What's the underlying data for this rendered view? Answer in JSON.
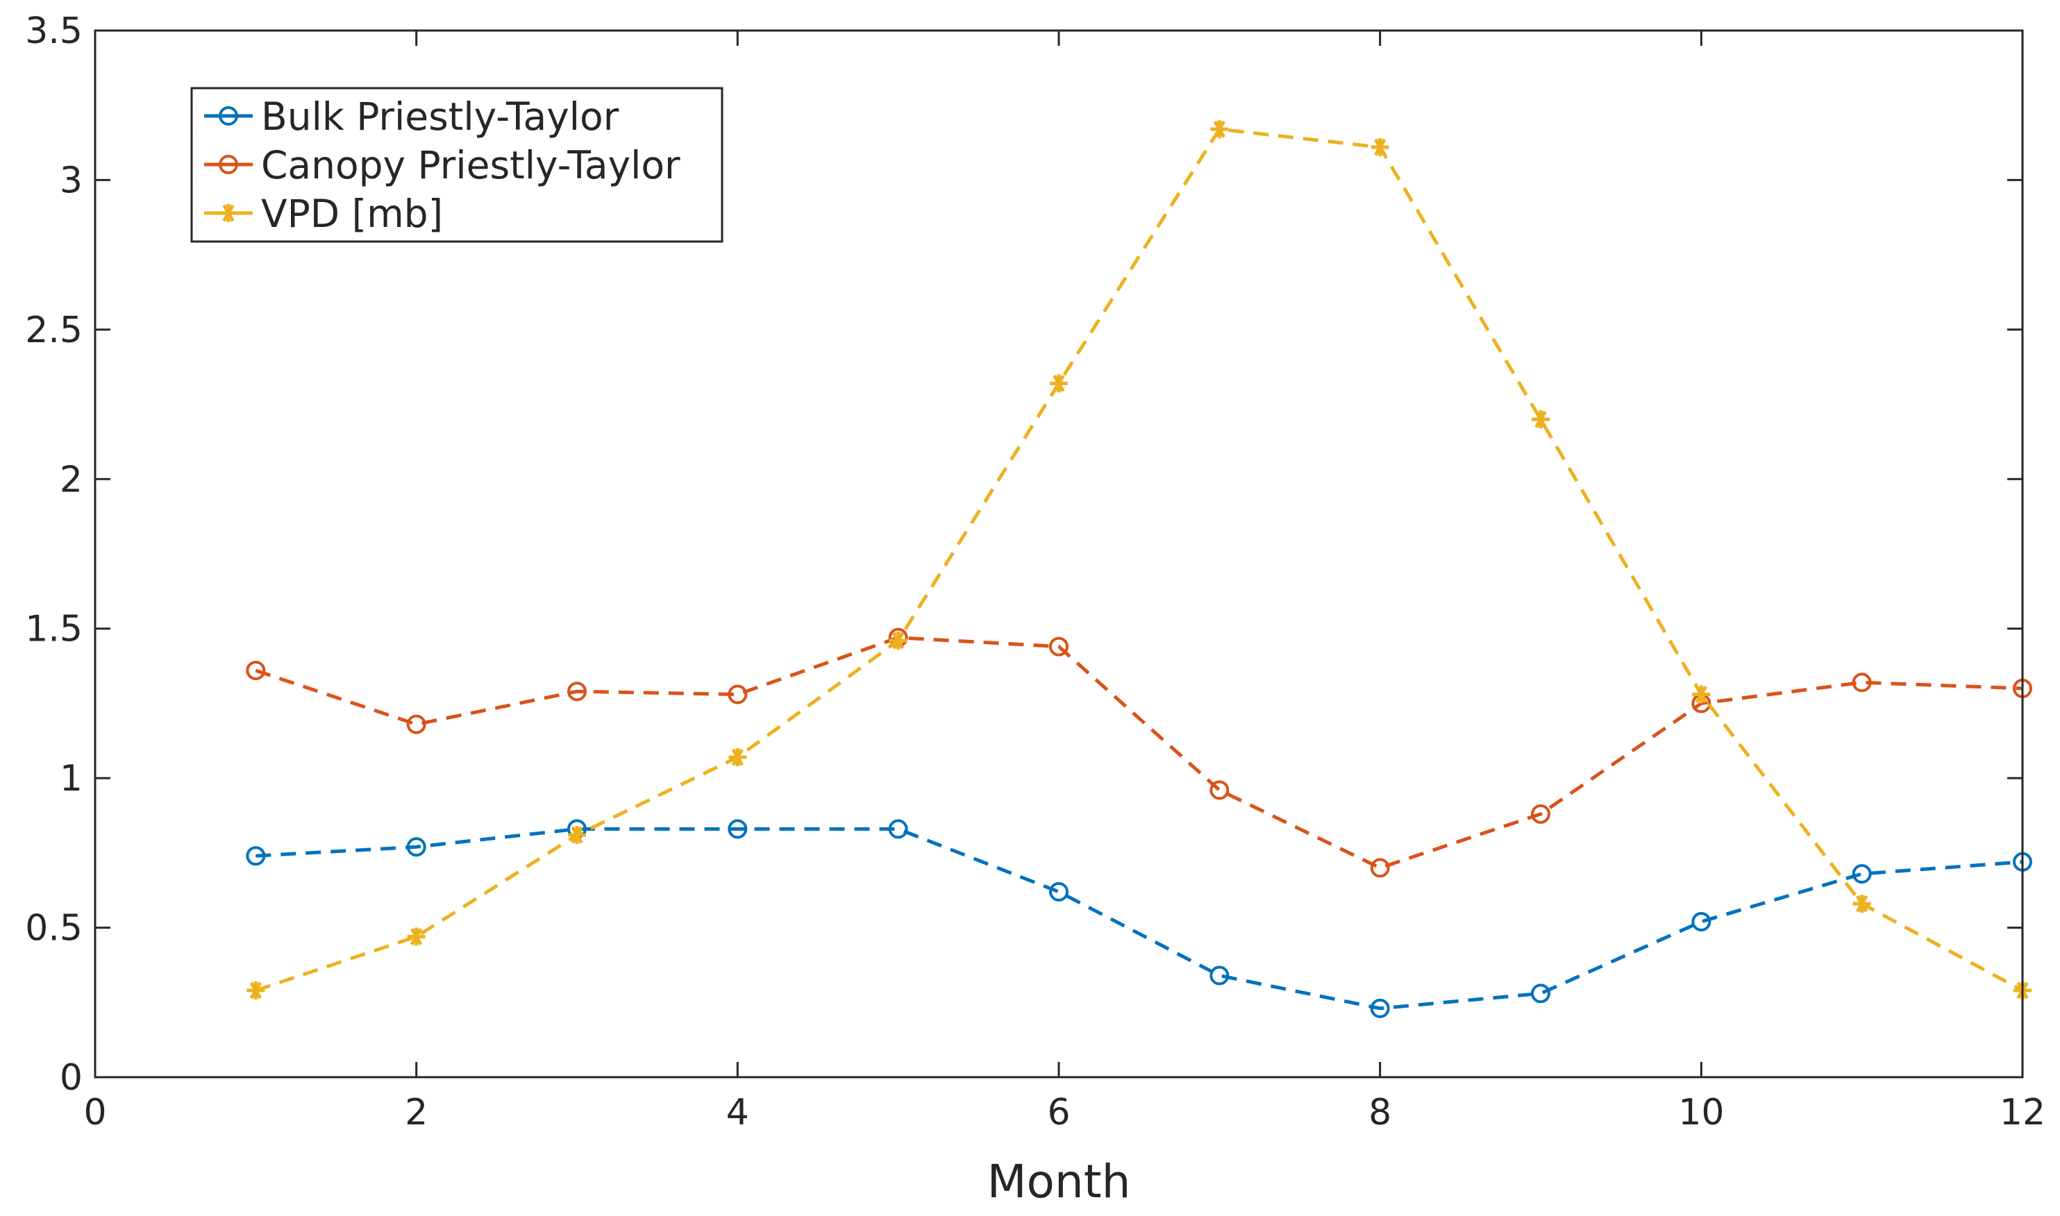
{
  "chart_data": {
    "type": "line",
    "title": "",
    "xlabel": "Month",
    "ylabel": "",
    "xlim": [
      0,
      12
    ],
    "ylim": [
      0,
      3.5
    ],
    "xticks": [
      0,
      2,
      4,
      6,
      8,
      10,
      12
    ],
    "xtick_labels": [
      "0",
      "2",
      "4",
      "6",
      "8",
      "10",
      "12"
    ],
    "yticks": [
      0,
      0.5,
      1,
      1.5,
      2,
      2.5,
      3,
      3.5
    ],
    "ytick_labels": [
      "0",
      "0.5",
      "1",
      "1.5",
      "2",
      "2.5",
      "3",
      "3.5"
    ],
    "grid": false,
    "legend_position": "top-left",
    "x": [
      1,
      2,
      3,
      4,
      5,
      6,
      7,
      8,
      9,
      10,
      11,
      12
    ],
    "series": [
      {
        "name": "Bulk Priestly-Taylor",
        "color": "#0072BD",
        "marker": "circle",
        "line_style": "dashed",
        "values": [
          0.74,
          0.77,
          0.83,
          0.83,
          0.83,
          0.62,
          0.34,
          0.23,
          0.28,
          0.52,
          0.68,
          0.72
        ]
      },
      {
        "name": "Canopy Priestly-Taylor",
        "color": "#D95319",
        "marker": "circle",
        "line_style": "dashed",
        "values": [
          1.36,
          1.18,
          1.29,
          1.28,
          1.47,
          1.44,
          0.96,
          0.7,
          0.88,
          1.25,
          1.32,
          1.3
        ]
      },
      {
        "name": "VPD [mb]",
        "color": "#EDB120",
        "marker": "asterisk",
        "line_style": "dashed",
        "values": [
          0.29,
          0.47,
          0.81,
          1.07,
          1.46,
          2.32,
          3.17,
          3.11,
          2.2,
          1.28,
          0.58,
          0.29
        ]
      }
    ]
  }
}
